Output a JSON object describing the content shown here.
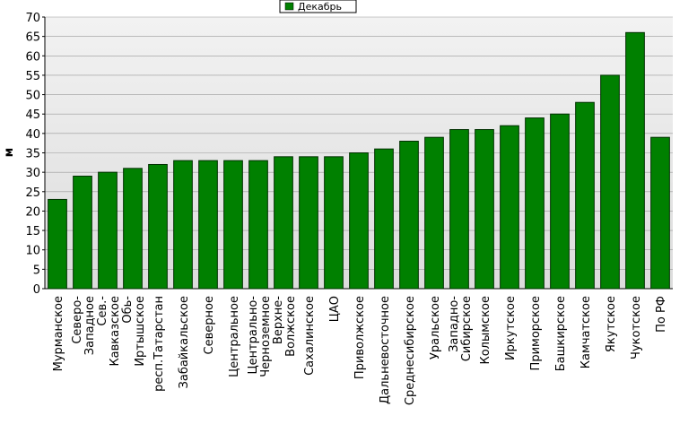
{
  "chart_data": {
    "type": "bar",
    "legend_label": "Декабрь",
    "y_label": "м",
    "categories": [
      "Мурманское",
      "Северо-Западное",
      "Сев.-Кавказское",
      "Обь-Иртышское",
      "респ.Татарстан",
      "Забайкальское",
      "Северное",
      "Центральное",
      "Центрально-Черноземное",
      "Верхне-Волжское",
      "Сахалинское",
      "ЦАО",
      "Приволжское",
      "Дальневосточное",
      "Среднесибирское",
      "Уральское",
      "Западно-Сибирское",
      "Колымское",
      "Иркутское",
      "Приморское",
      "Башкирское",
      "Камчатское",
      "Якутское",
      "Чукотское",
      "По РФ"
    ],
    "values": [
      23,
      29,
      30,
      31,
      32,
      33,
      33,
      33,
      33,
      34,
      34,
      34,
      35,
      36,
      38,
      39,
      41,
      41,
      42,
      44,
      45,
      48,
      55,
      66,
      39
    ],
    "color": "#008000",
    "ylim": [
      0,
      70
    ],
    "yticks": [
      0,
      5,
      10,
      15,
      20,
      25,
      30,
      35,
      40,
      45,
      50,
      55,
      60,
      65,
      70
    ],
    "grid": true
  }
}
